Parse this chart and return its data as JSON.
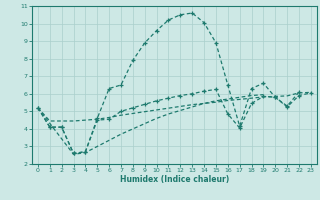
{
  "bg_color": "#cde8e5",
  "grid_color": "#aacfcc",
  "line_color": "#1e7a6e",
  "xlabel": "Humidex (Indice chaleur)",
  "xlim": [
    -0.5,
    23.5
  ],
  "ylim": [
    2,
    11
  ],
  "xticks": [
    0,
    1,
    2,
    3,
    4,
    5,
    6,
    7,
    8,
    9,
    10,
    11,
    12,
    13,
    14,
    15,
    16,
    17,
    18,
    19,
    20,
    21,
    22,
    23
  ],
  "yticks": [
    2,
    3,
    4,
    5,
    6,
    7,
    8,
    9,
    10,
    11
  ],
  "lines": [
    {
      "x": [
        0,
        1,
        2,
        3,
        4,
        5,
        6,
        7,
        8,
        9,
        10,
        11,
        12,
        13,
        14,
        15,
        16,
        17,
        18,
        19,
        20,
        21,
        22
      ],
      "y": [
        5.2,
        4.1,
        4.1,
        2.6,
        2.7,
        4.6,
        6.3,
        6.5,
        7.9,
        8.9,
        9.6,
        10.2,
        10.5,
        10.6,
        10.05,
        8.9,
        6.5,
        4.15,
        6.3,
        6.6,
        5.8,
        5.3,
        6.1
      ],
      "marker": true
    },
    {
      "x": [
        0,
        1,
        2,
        3,
        4,
        5,
        6,
        7,
        8,
        9,
        10,
        11,
        12,
        13,
        14,
        15,
        16,
        17,
        18,
        19,
        20,
        21,
        22,
        23
      ],
      "y": [
        5.2,
        4.1,
        4.1,
        2.6,
        2.7,
        4.5,
        4.55,
        5.0,
        5.2,
        5.4,
        5.6,
        5.75,
        5.9,
        6.0,
        6.15,
        6.25,
        4.85,
        4.05,
        5.45,
        5.85,
        5.8,
        5.25,
        5.9,
        6.05
      ],
      "marker": true
    },
    {
      "x": [
        0,
        3,
        4,
        5,
        6,
        7,
        8,
        9,
        10,
        11,
        12,
        13,
        14,
        15,
        16,
        17,
        18,
        19
      ],
      "y": [
        5.2,
        2.55,
        2.65,
        3.0,
        3.35,
        3.7,
        4.0,
        4.3,
        4.6,
        4.85,
        5.05,
        5.25,
        5.45,
        5.6,
        5.7,
        5.8,
        5.9,
        5.95
      ],
      "marker": false
    },
    {
      "x": [
        0,
        1,
        2,
        3,
        4,
        5,
        6,
        7,
        8,
        9,
        10,
        11,
        12,
        13,
        14,
        15,
        16,
        17,
        18,
        19,
        20,
        21,
        22,
        23
      ],
      "y": [
        5.2,
        4.45,
        4.45,
        4.45,
        4.5,
        4.55,
        4.65,
        4.78,
        4.88,
        4.98,
        5.08,
        5.18,
        5.28,
        5.38,
        5.45,
        5.52,
        5.62,
        5.68,
        5.75,
        5.82,
        5.85,
        5.88,
        6.05,
        6.08
      ],
      "marker": false
    }
  ]
}
